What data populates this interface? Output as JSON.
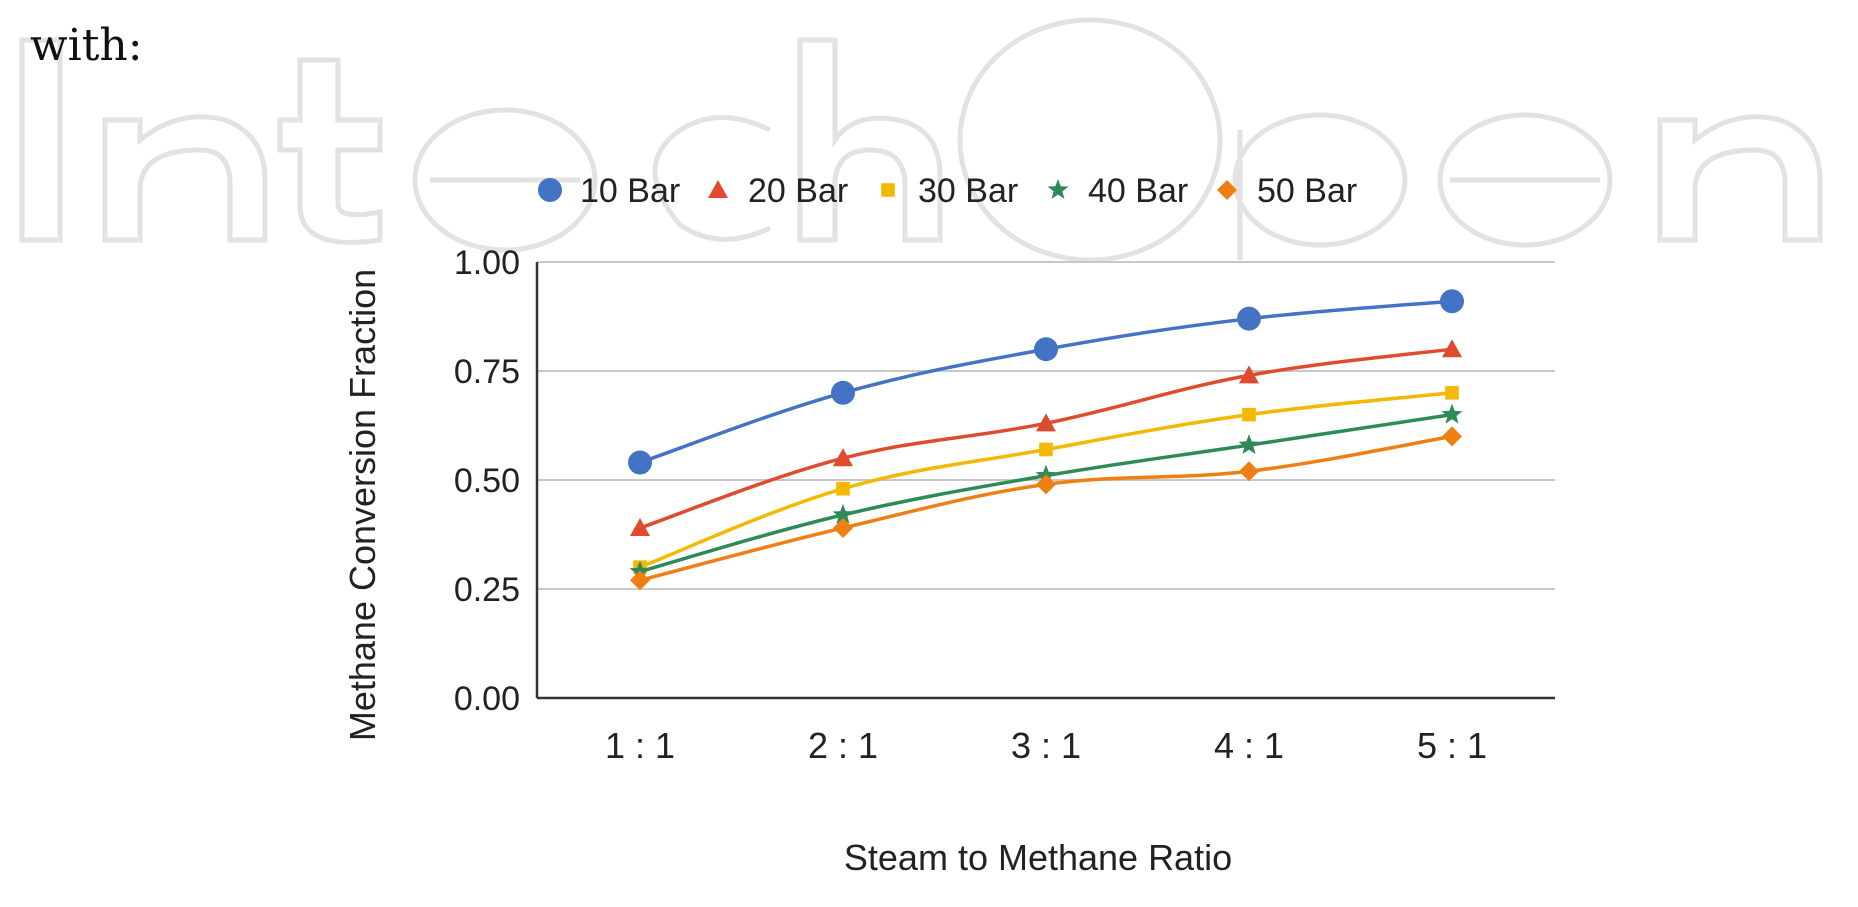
{
  "page": {
    "intro_text": "with:",
    "watermark": "IntechOpen"
  },
  "chart_data": {
    "type": "line",
    "title": "",
    "xlabel": "Steam to Methane Ratio",
    "ylabel": "Methane Conversion Fraction",
    "categories": [
      "1 : 1",
      "2 : 1",
      "3 : 1",
      "4 : 1",
      "5 : 1"
    ],
    "ylim": [
      0,
      1
    ],
    "yticks": [
      "0.00",
      "0.25",
      "0.50",
      "0.75",
      "1.00"
    ],
    "grid": "horizontal",
    "legend_position": "top",
    "series": [
      {
        "name": "10 Bar",
        "color": "#4472c4",
        "marker": "circle",
        "values": [
          0.54,
          0.7,
          0.8,
          0.87,
          0.91
        ]
      },
      {
        "name": "20 Bar",
        "color": "#e04a2f",
        "marker": "triangle",
        "values": [
          0.39,
          0.55,
          0.63,
          0.74,
          0.8
        ]
      },
      {
        "name": "30 Bar",
        "color": "#f5b800",
        "marker": "square",
        "values": [
          0.3,
          0.48,
          0.57,
          0.65,
          0.7
        ]
      },
      {
        "name": "40 Bar",
        "color": "#2e8b57",
        "marker": "star",
        "values": [
          0.29,
          0.42,
          0.51,
          0.58,
          0.65
        ]
      },
      {
        "name": "50 Bar",
        "color": "#f07f13",
        "marker": "diamond",
        "values": [
          0.27,
          0.39,
          0.49,
          0.52,
          0.6
        ]
      }
    ]
  }
}
